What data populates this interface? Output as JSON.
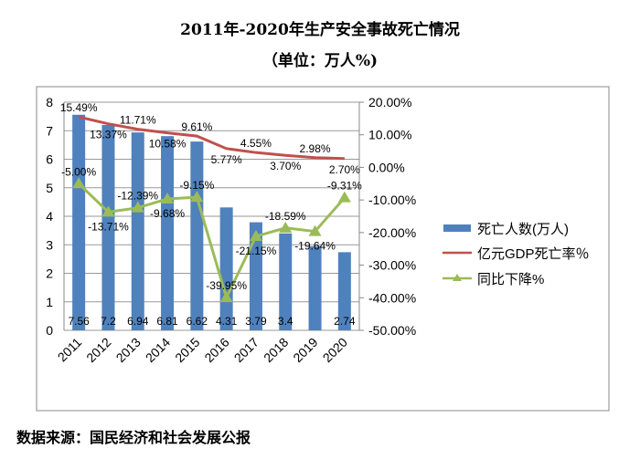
{
  "title": "2011年-2020年生产安全事故死亡情况",
  "subtitle": "（单位：万人%)",
  "source": "数据来源：国民经济和社会发展公报",
  "chart_data": {
    "type": "bar+line",
    "categories": [
      "2011",
      "2012",
      "2013",
      "2014",
      "2015",
      "2016",
      "2017",
      "2018",
      "2019",
      "2020"
    ],
    "y_left": {
      "range": [
        0,
        8
      ],
      "ticks": [
        "0",
        "1",
        "2",
        "3",
        "4",
        "5",
        "6",
        "7",
        "8"
      ]
    },
    "y_right": {
      "range": [
        -50,
        20
      ],
      "ticks": [
        "-50.00%",
        "-40.00%",
        "-30.00%",
        "-20.00%",
        "-10.00%",
        "0.00%",
        "10.00%",
        "20.00%"
      ]
    },
    "grid": true,
    "legend_position": "right",
    "series": [
      {
        "name": "死亡人数(万人)",
        "type": "bar",
        "axis": "left",
        "color": "#4f81bd",
        "values": [
          7.56,
          7.2,
          6.94,
          6.81,
          6.62,
          4.31,
          3.79,
          3.4,
          2.95,
          2.74
        ],
        "labels": [
          "7.56",
          "7.2",
          "6.94",
          "6.81",
          "6.62",
          "4.31",
          "3.79",
          "3.4",
          "",
          "2.74"
        ]
      },
      {
        "name": "亿元GDP死亡率％",
        "type": "line",
        "axis": "right",
        "color": "#c0504d",
        "values": [
          15.49,
          13.37,
          11.71,
          10.58,
          9.61,
          5.77,
          4.55,
          3.7,
          2.98,
          2.7
        ],
        "labels": [
          "15.49%",
          "13.37%",
          "11.71%",
          "10.58%",
          "9.61%",
          "5.77%",
          "4.55%",
          "3.70%",
          "2.98%",
          "2.70%"
        ]
      },
      {
        "name": "同比下降%",
        "type": "line",
        "axis": "right",
        "color": "#9bbb59",
        "values": [
          -5.0,
          -13.71,
          -12.39,
          -9.68,
          -9.15,
          -39.95,
          -21.15,
          -18.59,
          -19.64,
          -9.31
        ],
        "labels": [
          "-5.00%",
          "-13.71%",
          "-12.39%",
          "-9.68%",
          "-9.15%",
          "-39.95%",
          "-21.15%",
          "-18.59%",
          "-19.64%",
          "-9.31%"
        ]
      }
    ]
  }
}
